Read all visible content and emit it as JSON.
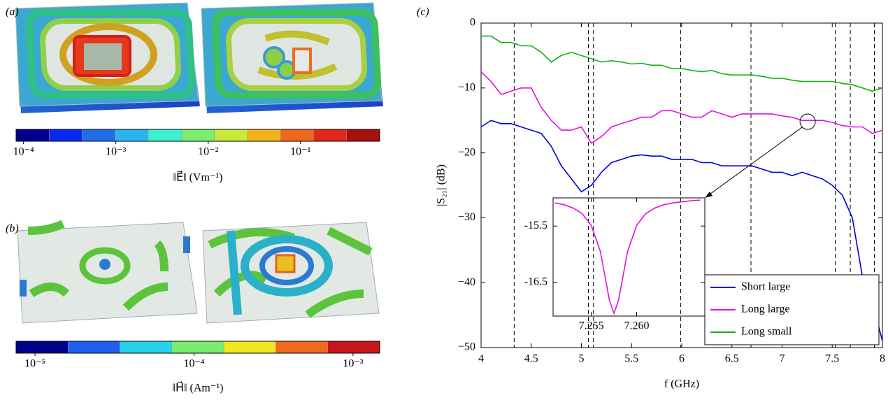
{
  "panels": {
    "a": {
      "label": "(a)",
      "colorbar": {
        "log": true,
        "lim": [
          8.3e-05,
          0.72
        ],
        "colors": [
          "#00008c",
          "#0a2af0",
          "#1f6ee8",
          "#28b4ec",
          "#3cf0d2",
          "#7aec6e",
          "#c8e83a",
          "#f2b41e",
          "#f0661e",
          "#e0281c",
          "#a8100e"
        ],
        "ticks": [
          {
            "value": 0.0001,
            "label": "10⁻⁴"
          },
          {
            "value": 0.001,
            "label": "10⁻³"
          },
          {
            "value": 0.01,
            "label": "10⁻²"
          },
          {
            "value": 0.1,
            "label": "10⁻¹"
          }
        ],
        "label": "‖E⃗‖ (Vm⁻¹)"
      }
    },
    "b": {
      "label": "(b)",
      "colorbar": {
        "log": true,
        "lim": [
          7.6e-06,
          0.00147
        ],
        "colors": [
          "#00008c",
          "#1f5ef0",
          "#28d2ec",
          "#7aec6e",
          "#f0e81e",
          "#f06a1e",
          "#c8141a"
        ],
        "ticks": [
          {
            "value": 1e-05,
            "label": "10⁻⁵"
          },
          {
            "value": 0.0001,
            "label": "10⁻⁴"
          },
          {
            "value": 0.001,
            "label": "10⁻³"
          }
        ],
        "label": "‖H⃗‖ (Am⁻¹)"
      }
    }
  },
  "chart_data": [
    {
      "type": "line",
      "label": "(c)",
      "x_label": "f (GHz)",
      "y_label": "|S₂₁| (dB)",
      "x": [
        4.0,
        4.1,
        4.2,
        4.3,
        4.4,
        4.5,
        4.6,
        4.7,
        4.8,
        4.9,
        5.0,
        5.1,
        5.2,
        5.3,
        5.4,
        5.5,
        5.6,
        5.7,
        5.8,
        5.9,
        6.0,
        6.1,
        6.2,
        6.3,
        6.4,
        6.5,
        6.6,
        6.7,
        6.8,
        6.9,
        7.0,
        7.1,
        7.2,
        7.3,
        7.4,
        7.5,
        7.6,
        7.7,
        7.8,
        7.9,
        8.0
      ],
      "series": [
        {
          "name": "Short large",
          "color": "#0000dd",
          "values": [
            -16,
            -15,
            -15.5,
            -15.5,
            -16,
            -16.5,
            -17,
            -19,
            -22,
            -24,
            -26,
            -25,
            -23,
            -21.5,
            -21,
            -20.5,
            -20.3,
            -20.5,
            -20.5,
            -21,
            -21,
            -21,
            -21.5,
            -21.5,
            -22,
            -22,
            -22,
            -22,
            -22.5,
            -23,
            -23,
            -23.5,
            -23,
            -23.5,
            -24,
            -25,
            -26.5,
            -30,
            -39,
            -43,
            -49
          ]
        },
        {
          "name": "Long large",
          "color": "#e010e0",
          "values": [
            -7.5,
            -9,
            -11,
            -10.5,
            -10,
            -10,
            -13,
            -15,
            -16.5,
            -16.5,
            -16,
            -18.5,
            -17.5,
            -16,
            -15.5,
            -15,
            -14.5,
            -14.5,
            -13.5,
            -13.5,
            -14,
            -14.5,
            -14.5,
            -13.5,
            -14,
            -14.5,
            -14,
            -14,
            -14,
            -14,
            -14.3,
            -14.5,
            -15,
            -15,
            -15,
            -15.3,
            -15.8,
            -16,
            -16,
            -17,
            -16.5
          ]
        },
        {
          "name": "Long small",
          "color": "#10b010",
          "values": [
            -2,
            -2,
            -3,
            -3,
            -3.5,
            -3.5,
            -4.5,
            -6,
            -5,
            -4.5,
            -5,
            -5.5,
            -6,
            -5.8,
            -6,
            -6.3,
            -6.2,
            -6.5,
            -6.5,
            -7,
            -7,
            -7.3,
            -7.5,
            -7.3,
            -7.8,
            -8,
            -8,
            -8,
            -8.2,
            -8.5,
            -8.5,
            -8.8,
            -9,
            -9,
            -9,
            -9,
            -9.3,
            -9.5,
            -10,
            -10.5,
            -10
          ]
        }
      ],
      "vlines": [
        4.33,
        5.07,
        5.12,
        5.99,
        6.69,
        7.53,
        7.68,
        7.92
      ],
      "xlim": [
        4,
        8
      ],
      "xticks": [
        4,
        4.5,
        5,
        5.5,
        6,
        6.5,
        7,
        7.5,
        8
      ],
      "ylim": [
        -50,
        0
      ],
      "yticks": [
        0,
        {
          "value": -10,
          "label": "−10"
        },
        {
          "value": -20,
          "label": "−20"
        },
        {
          "value": -30,
          "label": "−30"
        },
        {
          "value": -40,
          "label": "−40"
        },
        {
          "value": -50,
          "label": "−50"
        }
      ],
      "legend": "lower right"
    },
    {
      "type": "line",
      "x": [
        7.251,
        7.252,
        7.253,
        7.254,
        7.255,
        7.256,
        7.257,
        7.2575,
        7.258,
        7.259,
        7.26,
        7.261,
        7.262,
        7.263,
        7.264,
        7.265,
        7.266,
        7.267
      ],
      "series": [
        {
          "color": "#e010e0",
          "values": [
            -15.09,
            -15.12,
            -15.18,
            -15.28,
            -15.49,
            -15.95,
            -16.82,
            -17.05,
            -16.82,
            -15.95,
            -15.49,
            -15.28,
            -15.18,
            -15.12,
            -15.09,
            -15.07,
            -15.05,
            -15.04
          ]
        }
      ],
      "xlim": [
        7.2508,
        7.2675
      ],
      "xticks": [
        7.255,
        {
          "value": 7.26,
          "label": "7.260"
        }
      ],
      "ylim": [
        -17.1,
        -15.0
      ],
      "yticks": [
        -15.5,
        -16.5
      ]
    }
  ]
}
